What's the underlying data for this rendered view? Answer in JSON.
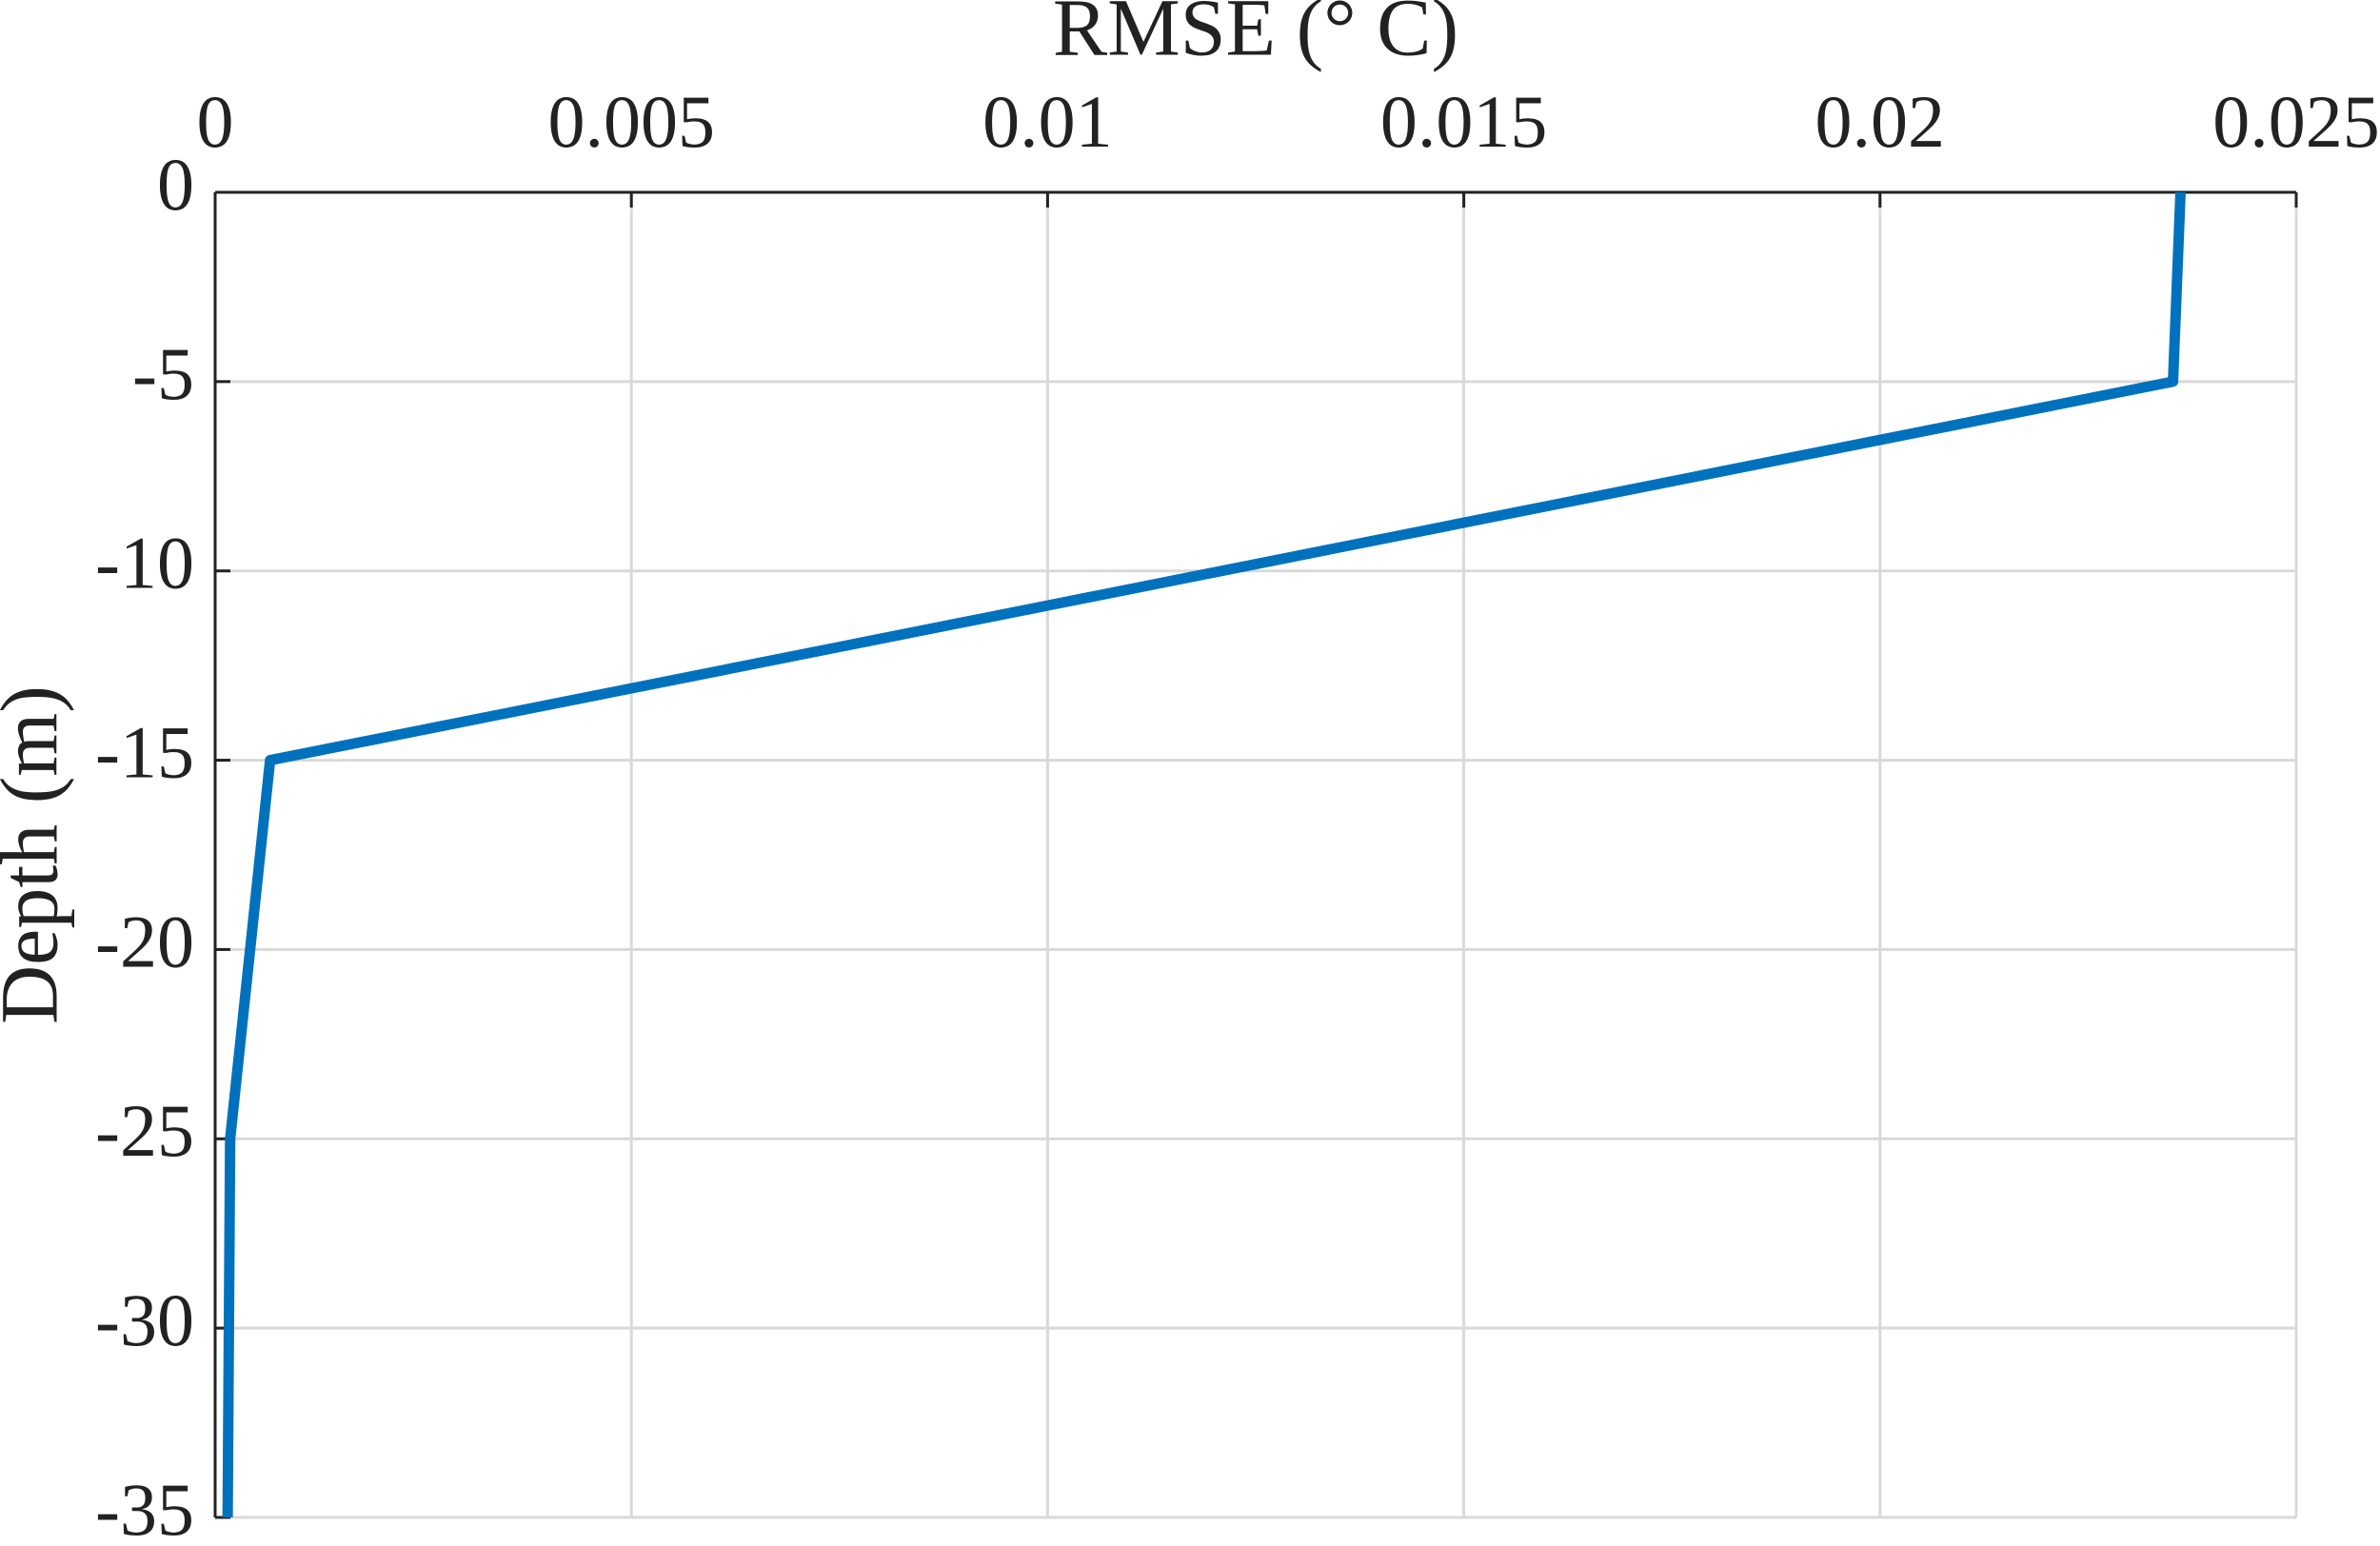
{
  "chart_data": {
    "type": "line",
    "x_label": "RMSE (° C)",
    "y_label": "Depth (m)",
    "x": [
      0.02361,
      0.02352,
      0.00066,
      0.00018,
      0.00015
    ],
    "values": [
      0,
      -5,
      -15,
      -25,
      -35
    ],
    "color": "#0072bd",
    "xlim": [
      0,
      0.025
    ],
    "xticks": [
      0,
      0.005,
      0.01,
      0.015,
      0.02,
      0.025
    ],
    "ylim": [
      -35,
      0
    ],
    "yticks": [
      0,
      -5,
      -10,
      -15,
      -20,
      -25,
      -30,
      -35
    ],
    "grid": true
  }
}
